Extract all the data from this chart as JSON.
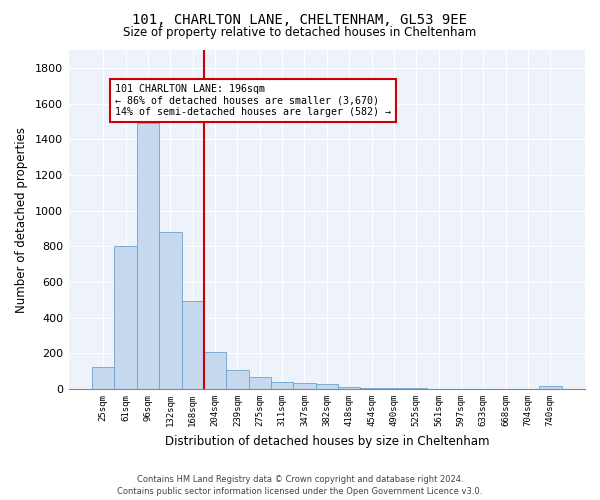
{
  "title_line1": "101, CHARLTON LANE, CHELTENHAM, GL53 9EE",
  "title_line2": "Size of property relative to detached houses in Cheltenham",
  "xlabel": "Distribution of detached houses by size in Cheltenham",
  "ylabel": "Number of detached properties",
  "footer_line1": "Contains HM Land Registry data © Crown copyright and database right 2024.",
  "footer_line2": "Contains public sector information licensed under the Open Government Licence v3.0.",
  "categories": [
    "25sqm",
    "61sqm",
    "96sqm",
    "132sqm",
    "168sqm",
    "204sqm",
    "239sqm",
    "275sqm",
    "311sqm",
    "347sqm",
    "382sqm",
    "418sqm",
    "454sqm",
    "490sqm",
    "525sqm",
    "561sqm",
    "597sqm",
    "633sqm",
    "668sqm",
    "704sqm",
    "740sqm"
  ],
  "values": [
    125,
    800,
    1490,
    880,
    495,
    205,
    105,
    65,
    42,
    32,
    28,
    10,
    5,
    5,
    4,
    3,
    2,
    2,
    2,
    2,
    18
  ],
  "bar_color": "#c5d8ee",
  "bar_edge_color": "#6aa3cc",
  "ylim": [
    0,
    1900
  ],
  "yticks": [
    0,
    200,
    400,
    600,
    800,
    1000,
    1200,
    1400,
    1600,
    1800
  ],
  "vline_index": 5,
  "vline_color": "#cc0000",
  "annotation_text_line1": "101 CHARLTON LANE: 196sqm",
  "annotation_text_line2": "← 86% of detached houses are smaller (3,670)",
  "annotation_text_line3": "14% of semi-detached houses are larger (582) →",
  "annotation_box_color": "#cc0000",
  "background_color": "#eef2fa",
  "grid_color": "#ffffff"
}
